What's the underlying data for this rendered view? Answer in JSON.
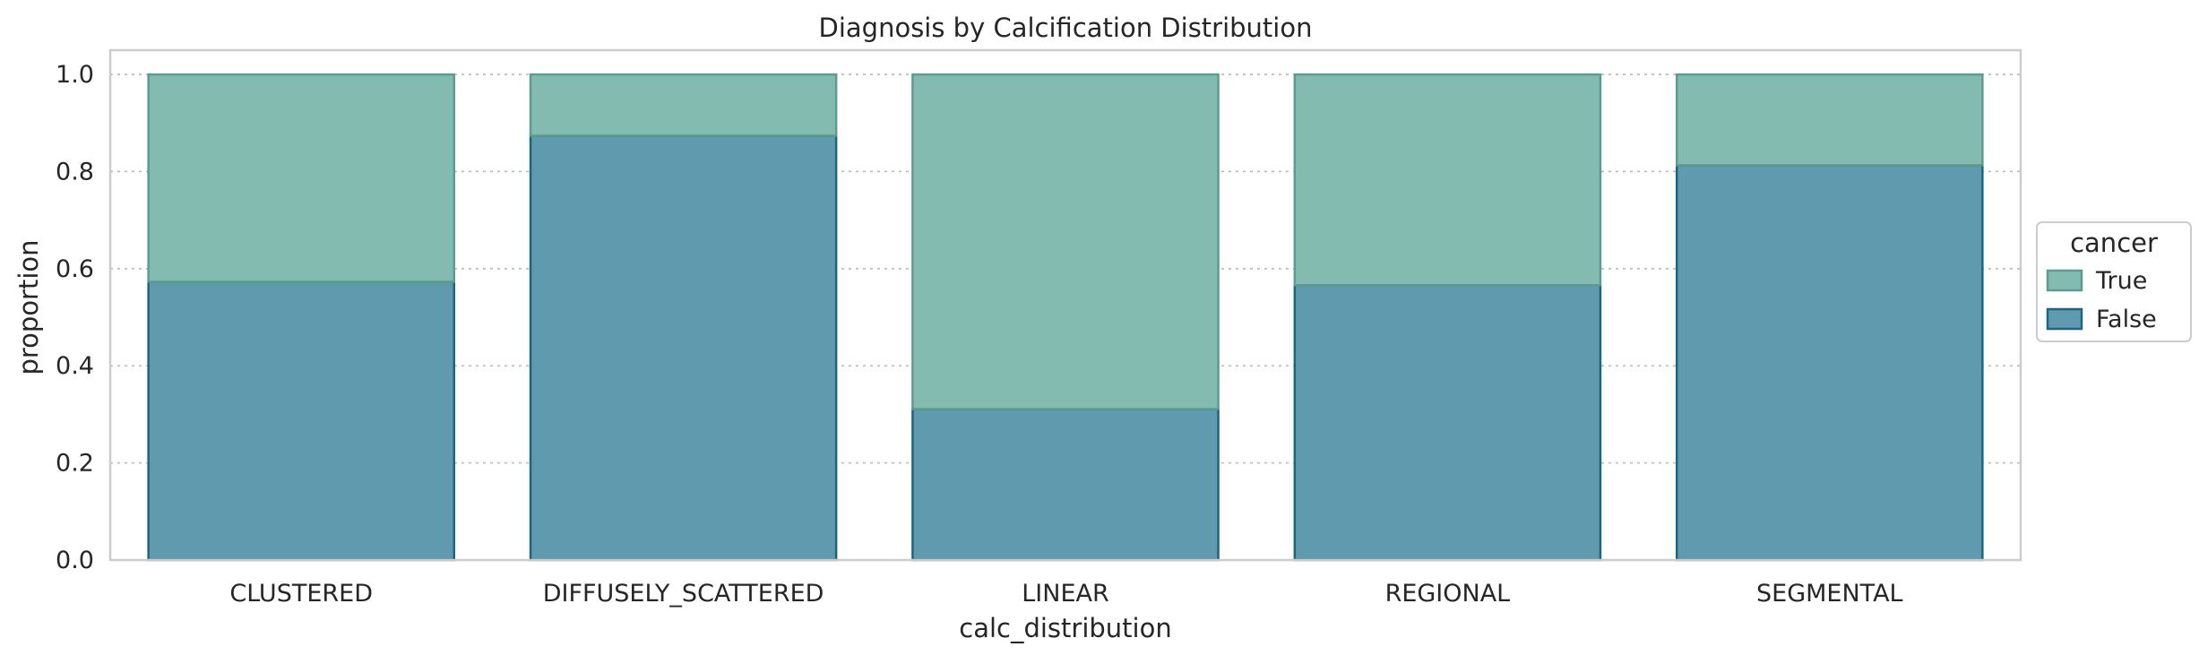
{
  "chart_data": {
    "type": "bar",
    "stacked": true,
    "title": "Diagnosis by Calcification Distribution",
    "xlabel": "calc_distribution",
    "ylabel": "proportion",
    "ylim": [
      0,
      1.05
    ],
    "yticks": [
      "0.0",
      "0.2",
      "0.4",
      "0.6",
      "0.8",
      "1.0"
    ],
    "ytick_values": [
      0.0,
      0.2,
      0.4,
      0.6,
      0.8,
      1.0
    ],
    "grid": true,
    "categories": [
      "CLUSTERED",
      "DIFFUSELY_SCATTERED",
      "LINEAR",
      "REGIONAL",
      "SEGMENTAL"
    ],
    "series": [
      {
        "name": "False",
        "values": [
          0.573,
          0.874,
          0.311,
          0.566,
          0.813
        ],
        "color": "#5f9aae",
        "edge": "#1f6580"
      },
      {
        "name": "True",
        "values": [
          0.427,
          0.126,
          0.689,
          0.434,
          0.187
        ],
        "color": "#84bbb0",
        "edge": "#5c9c8f"
      }
    ],
    "legend": {
      "title": "cancer",
      "placement": "right",
      "entries": [
        "True",
        "False"
      ]
    }
  }
}
